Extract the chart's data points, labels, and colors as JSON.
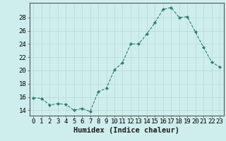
{
  "x": [
    0,
    1,
    2,
    3,
    4,
    5,
    6,
    7,
    8,
    9,
    10,
    11,
    12,
    13,
    14,
    15,
    16,
    17,
    18,
    19,
    20,
    21,
    22,
    23
  ],
  "y": [
    15.9,
    15.8,
    14.8,
    15.0,
    14.9,
    14.0,
    14.3,
    13.8,
    16.8,
    17.3,
    20.1,
    21.2,
    24.0,
    24.0,
    25.5,
    27.2,
    29.2,
    29.5,
    28.0,
    28.1,
    25.8,
    23.5,
    21.3,
    20.5
  ],
  "line_color": "#2e7d6e",
  "marker_color": "#2e7d6e",
  "bg_color": "#ceeeed",
  "grid_color": "#b8d8d6",
  "xlabel": "Humidex (Indice chaleur)",
  "ylabel_ticks": [
    14,
    16,
    18,
    20,
    22,
    24,
    26,
    28
  ],
  "ylim": [
    13.2,
    30.2
  ],
  "xlim": [
    -0.5,
    23.5
  ],
  "xticks": [
    0,
    1,
    2,
    3,
    4,
    5,
    6,
    7,
    8,
    9,
    10,
    11,
    12,
    13,
    14,
    15,
    16,
    17,
    18,
    19,
    20,
    21,
    22,
    23
  ],
  "xlabel_fontsize": 7.5,
  "tick_fontsize": 6.5,
  "spine_color": "#555555"
}
